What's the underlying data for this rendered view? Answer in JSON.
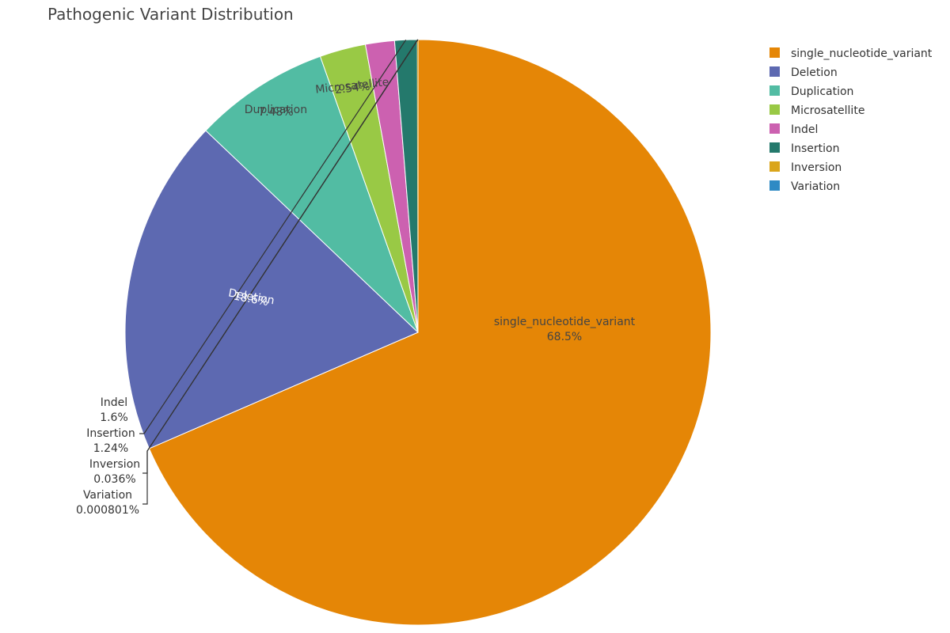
{
  "chart_data": {
    "type": "pie",
    "title": "Pathogenic Variant Distribution",
    "slices": [
      {
        "label": "single_nucleotide_variant",
        "percent_label": "68.5%",
        "value": 68.5,
        "color": "#E58606"
      },
      {
        "label": "Deletion",
        "percent_label": "18.6%",
        "value": 18.6,
        "color": "#5D69B1"
      },
      {
        "label": "Duplication",
        "percent_label": "7.48%",
        "value": 7.48,
        "color": "#52BCA3"
      },
      {
        "label": "Microsatellite",
        "percent_label": "2.54%",
        "value": 2.54,
        "color": "#99C945"
      },
      {
        "label": "Indel",
        "percent_label": "1.6%",
        "value": 1.6,
        "color": "#CC61B0"
      },
      {
        "label": "Insertion",
        "percent_label": "1.24%",
        "value": 1.24,
        "color": "#24796C"
      },
      {
        "label": "Inversion",
        "percent_label": "0.036%",
        "value": 0.036,
        "color": "#DAA51B"
      },
      {
        "label": "Variation",
        "percent_label": "0.000801%",
        "value": 0.000801,
        "color": "#2F8AC4"
      }
    ],
    "legend_position": "top-right",
    "direction": "clockwise",
    "start_angle_deg": 0
  }
}
